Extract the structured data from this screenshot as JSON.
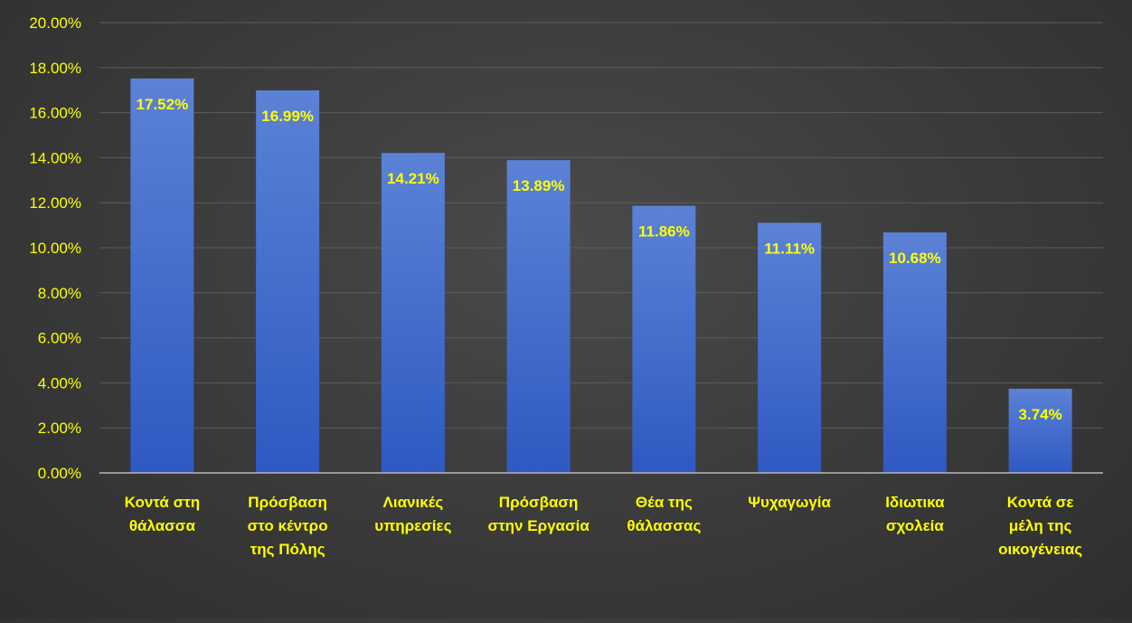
{
  "chart_data": {
    "type": "bar",
    "title": "",
    "xlabel": "",
    "ylabel": "",
    "ylim": [
      0,
      20
    ],
    "y_tick_step": 2,
    "y_tick_format": "percent_2dp",
    "grid": true,
    "legend": "none",
    "colors": {
      "bar_top": "#5b82d6",
      "bar_bottom": "#2f59c2",
      "label": "#ffff00",
      "background": "#3a3a3a"
    },
    "categories": [
      [
        "Κοντά στη",
        "θάλασσα"
      ],
      [
        "Πρόσβαση",
        "στο κέντρο",
        "της Πόλης"
      ],
      [
        "Λιανικές",
        "υπηρεσίες"
      ],
      [
        "Πρόσβαση",
        "στην Εργασία"
      ],
      [
        "Θέα της",
        "θάλασσας"
      ],
      [
        "Ψυχαγωγία"
      ],
      [
        "Ιδιωτικα",
        "σχολεία"
      ],
      [
        "Κοντά σε",
        "μέλη της",
        "οικογένειας"
      ]
    ],
    "values": [
      17.52,
      16.99,
      14.21,
      13.89,
      11.86,
      11.11,
      10.68,
      3.74
    ],
    "data_labels": [
      "17.52%",
      "16.99%",
      "14.21%",
      "13.89%",
      "11.86%",
      "11.11%",
      "10.68%",
      "3.74%"
    ]
  }
}
